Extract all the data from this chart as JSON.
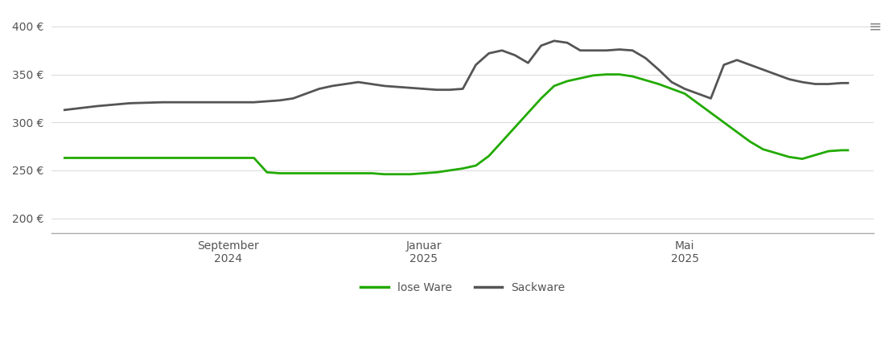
{
  "ylabel": "",
  "background_color": "#ffffff",
  "grid_color": "#dddddd",
  "axis_color": "#333333",
  "tick_label_color": "#555555",
  "legend_labels": [
    "lose Ware",
    "Sackware"
  ],
  "legend_colors": [
    "#22aa00",
    "#555555"
  ],
  "lose_ware": {
    "x": [
      0,
      0.5,
      1.0,
      1.5,
      2.0,
      2.3,
      2.5,
      2.7,
      2.9,
      3.1,
      3.3,
      3.5,
      3.7,
      3.9,
      4.1,
      4.3,
      4.5,
      4.7,
      4.9,
      5.1,
      5.3,
      5.5,
      5.7,
      5.9,
      6.1,
      6.3,
      6.5,
      6.7,
      6.9,
      7.1,
      7.3,
      7.5,
      7.7,
      7.9,
      8.1,
      8.3,
      8.5,
      8.7,
      8.9,
      9.1,
      9.3,
      9.5,
      9.7,
      9.9,
      10.1,
      10.3,
      10.5,
      10.7,
      10.9,
      11.1,
      11.3,
      11.5,
      11.7,
      11.9,
      12.0
    ],
    "y": [
      263,
      263,
      263,
      263,
      263,
      263,
      263,
      263,
      263,
      248,
      247,
      247,
      247,
      247,
      247,
      247,
      247,
      247,
      246,
      246,
      246,
      247,
      248,
      250,
      252,
      255,
      265,
      280,
      295,
      310,
      325,
      338,
      343,
      346,
      349,
      350,
      350,
      348,
      344,
      340,
      335,
      330,
      320,
      310,
      300,
      290,
      280,
      272,
      268,
      264,
      262,
      266,
      270,
      271,
      271
    ]
  },
  "sackware": {
    "x": [
      0,
      0.5,
      1.0,
      1.5,
      2.0,
      2.3,
      2.5,
      2.7,
      2.9,
      3.1,
      3.3,
      3.5,
      3.7,
      3.9,
      4.1,
      4.3,
      4.5,
      4.7,
      4.9,
      5.1,
      5.3,
      5.5,
      5.7,
      5.9,
      6.1,
      6.3,
      6.5,
      6.7,
      6.9,
      7.1,
      7.3,
      7.5,
      7.7,
      7.9,
      8.1,
      8.3,
      8.5,
      8.7,
      8.9,
      9.1,
      9.3,
      9.5,
      9.7,
      9.9,
      10.1,
      10.3,
      10.5,
      10.7,
      10.9,
      11.1,
      11.3,
      11.5,
      11.7,
      11.9,
      12.0
    ],
    "y": [
      313,
      317,
      320,
      321,
      321,
      321,
      321,
      321,
      321,
      322,
      323,
      325,
      330,
      335,
      338,
      340,
      342,
      340,
      338,
      337,
      336,
      335,
      334,
      334,
      335,
      360,
      372,
      375,
      370,
      362,
      380,
      385,
      383,
      375,
      375,
      375,
      376,
      375,
      367,
      355,
      342,
      335,
      330,
      325,
      360,
      365,
      360,
      355,
      350,
      345,
      342,
      340,
      340,
      341,
      341
    ]
  },
  "x_tick_positions": [
    2.5,
    5.5,
    9.5
  ],
  "x_tick_labels": [
    "September\n2024",
    "Januar\n2025",
    "Mai\n2025"
  ],
  "y_ticks": [
    200,
    250,
    300,
    350,
    400
  ],
  "ylim": [
    185,
    415
  ],
  "xlim": [
    -0.2,
    12.4
  ]
}
